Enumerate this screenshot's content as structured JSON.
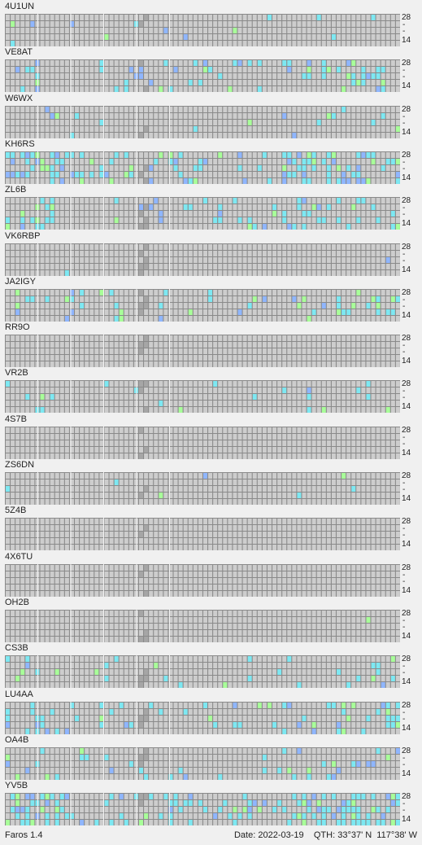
{
  "app": {
    "name": "Faros 1.4"
  },
  "status": {
    "date_label": "Date:",
    "date": "2022-03-19",
    "qth_label": "QTH:",
    "qth": "33°37' N  117°38' W"
  },
  "axis": {
    "top": "28",
    "bottom": "14"
  },
  "colors": {
    "background": "#8a8a8a",
    "cell": "#cdcdcd",
    "weak": "#8fb6ff",
    "medium": "#7de8f2",
    "strong": "#a8ff99"
  },
  "panels": [
    {
      "callsign": "4U1UN"
    },
    {
      "callsign": "VE8AT"
    },
    {
      "callsign": "W6WX"
    },
    {
      "callsign": "KH6RS"
    },
    {
      "callsign": "ZL6B"
    },
    {
      "callsign": "VK6RBP"
    },
    {
      "callsign": "JA2IGY"
    },
    {
      "callsign": "RR9O"
    },
    {
      "callsign": "VR2B"
    },
    {
      "callsign": "4S7B"
    },
    {
      "callsign": "ZS6DN"
    },
    {
      "callsign": "5Z4B"
    },
    {
      "callsign": "4X6TU"
    },
    {
      "callsign": "OH2B"
    },
    {
      "callsign": "CS3B"
    },
    {
      "callsign": "LU4AA"
    },
    {
      "callsign": "OA4B"
    },
    {
      "callsign": "YV5B"
    }
  ]
}
